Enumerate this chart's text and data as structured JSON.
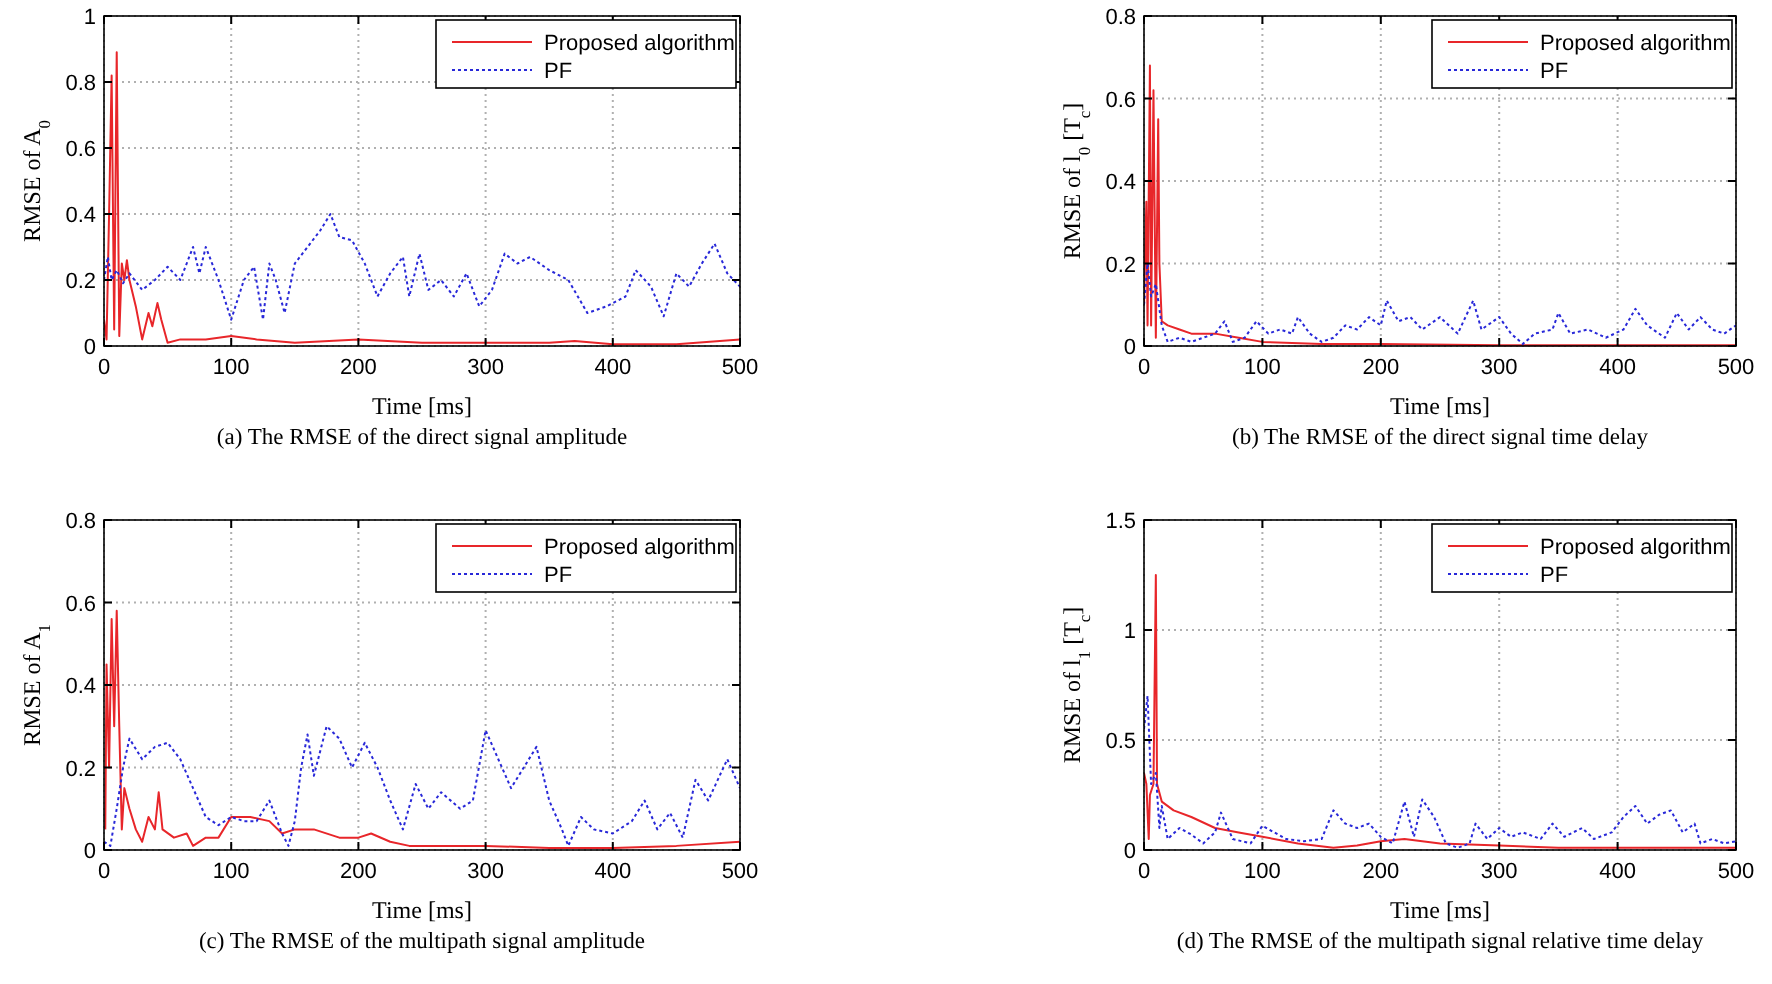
{
  "chart_data": [
    {
      "type": "line",
      "title": "(a) The RMSE of the direct signal amplitude",
      "xlabel": "Time [ms]",
      "ylabel": "RMSE of A$_{0}$",
      "xlim": [
        0,
        500
      ],
      "xticks": [
        0,
        100,
        200,
        300,
        400,
        500
      ],
      "ylim": [
        0,
        1
      ],
      "yticks": [
        0,
        0.2,
        0.4,
        0.6,
        0.8,
        1
      ],
      "grid": true,
      "legend": "top right",
      "series": [
        {
          "name": "Proposed algorithm",
          "color": "#e8262a",
          "line_style": "solid",
          "x": [
            0,
            2,
            4,
            6,
            8,
            10,
            12,
            14,
            16,
            18,
            20,
            25,
            30,
            35,
            38,
            42,
            45,
            50,
            60,
            80,
            100,
            120,
            150,
            200,
            250,
            300,
            350,
            370,
            400,
            450,
            500
          ],
          "values": [
            0.08,
            0.02,
            0.4,
            0.82,
            0.05,
            0.89,
            0.03,
            0.25,
            0.2,
            0.26,
            0.2,
            0.12,
            0.02,
            0.1,
            0.06,
            0.13,
            0.08,
            0.01,
            0.02,
            0.02,
            0.03,
            0.02,
            0.01,
            0.02,
            0.01,
            0.01,
            0.01,
            0.015,
            0.005,
            0.005,
            0.02
          ]
        },
        {
          "name": "PF",
          "color": "#2828d8",
          "line_style": "dotted",
          "x": [
            0,
            3,
            6,
            10,
            15,
            20,
            30,
            40,
            50,
            60,
            70,
            75,
            80,
            90,
            100,
            110,
            118,
            125,
            130,
            135,
            142,
            150,
            160,
            170,
            178,
            185,
            195,
            205,
            215,
            225,
            235,
            240,
            248,
            255,
            265,
            275,
            285,
            295,
            305,
            315,
            325,
            335,
            350,
            365,
            380,
            395,
            410,
            418,
            430,
            440,
            450,
            460,
            470,
            480,
            490,
            500
          ],
          "values": [
            0.2,
            0.27,
            0.2,
            0.23,
            0.19,
            0.22,
            0.17,
            0.2,
            0.24,
            0.2,
            0.3,
            0.22,
            0.3,
            0.2,
            0.08,
            0.2,
            0.24,
            0.08,
            0.25,
            0.2,
            0.1,
            0.25,
            0.3,
            0.35,
            0.4,
            0.33,
            0.32,
            0.25,
            0.15,
            0.22,
            0.27,
            0.15,
            0.28,
            0.17,
            0.2,
            0.15,
            0.22,
            0.12,
            0.17,
            0.28,
            0.25,
            0.27,
            0.23,
            0.2,
            0.1,
            0.12,
            0.15,
            0.23,
            0.18,
            0.09,
            0.22,
            0.18,
            0.25,
            0.31,
            0.22,
            0.18
          ]
        }
      ]
    },
    {
      "type": "line",
      "title": "(b) The RMSE of the direct signal time delay",
      "xlabel": "Time [ms]",
      "ylabel": "RMSE of l$_{0}$ [T$_{c}$]",
      "xlim": [
        0,
        500
      ],
      "xticks": [
        0,
        100,
        200,
        300,
        400,
        500
      ],
      "ylim": [
        0,
        0.8
      ],
      "yticks": [
        0,
        0.2,
        0.4,
        0.6,
        0.8
      ],
      "grid": true,
      "legend": "top right",
      "series": [
        {
          "name": "Proposed algorithm",
          "color": "#e8262a",
          "line_style": "solid",
          "x": [
            0,
            2,
            3,
            5,
            6,
            8,
            10,
            12,
            13,
            15,
            20,
            30,
            40,
            60,
            80,
            100,
            150,
            200,
            300,
            500
          ],
          "values": [
            0.1,
            0.35,
            0.05,
            0.68,
            0.05,
            0.62,
            0.02,
            0.55,
            0.2,
            0.06,
            0.05,
            0.04,
            0.03,
            0.03,
            0.02,
            0.01,
            0.005,
            0.005,
            0.002,
            0.002
          ]
        },
        {
          "name": "PF",
          "color": "#2828d8",
          "line_style": "dotted",
          "x": [
            0,
            3,
            6,
            10,
            15,
            20,
            30,
            40,
            50,
            60,
            68,
            75,
            85,
            95,
            105,
            115,
            125,
            130,
            140,
            150,
            160,
            170,
            180,
            190,
            200,
            205,
            215,
            225,
            235,
            250,
            265,
            278,
            285,
            300,
            310,
            320,
            330,
            345,
            350,
            360,
            375,
            390,
            405,
            415,
            425,
            440,
            450,
            460,
            470,
            480,
            490,
            500
          ],
          "values": [
            0.1,
            0.2,
            0.12,
            0.15,
            0.05,
            0.01,
            0.02,
            0.01,
            0.02,
            0.03,
            0.06,
            0.01,
            0.02,
            0.06,
            0.03,
            0.04,
            0.03,
            0.07,
            0.03,
            0.01,
            0.02,
            0.05,
            0.04,
            0.07,
            0.05,
            0.11,
            0.06,
            0.07,
            0.04,
            0.07,
            0.03,
            0.11,
            0.04,
            0.07,
            0.03,
            0.005,
            0.03,
            0.04,
            0.08,
            0.03,
            0.04,
            0.02,
            0.04,
            0.09,
            0.05,
            0.02,
            0.08,
            0.04,
            0.07,
            0.04,
            0.03,
            0.05
          ]
        }
      ]
    },
    {
      "type": "line",
      "title": "(c) The RMSE of the multipath signal amplitude",
      "xlabel": "Time [ms]",
      "ylabel": "RMSE of A$_{1}$",
      "xlim": [
        0,
        500
      ],
      "xticks": [
        0,
        100,
        200,
        300,
        400,
        500
      ],
      "ylim": [
        0,
        0.8
      ],
      "yticks": [
        0,
        0.2,
        0.4,
        0.6,
        0.8
      ],
      "grid": true,
      "legend": "top right",
      "series": [
        {
          "name": "Proposed algorithm",
          "color": "#e8262a",
          "line_style": "solid",
          "x": [
            1,
            2,
            4,
            6,
            8,
            10,
            12,
            14,
            16,
            20,
            25,
            30,
            35,
            40,
            43,
            46,
            55,
            65,
            70,
            80,
            90,
            100,
            115,
            130,
            140,
            150,
            165,
            185,
            200,
            210,
            225,
            240,
            260,
            300,
            350,
            400,
            450,
            500
          ],
          "values": [
            0.05,
            0.45,
            0.2,
            0.56,
            0.3,
            0.58,
            0.3,
            0.05,
            0.15,
            0.1,
            0.05,
            0.02,
            0.08,
            0.05,
            0.14,
            0.05,
            0.03,
            0.04,
            0.01,
            0.03,
            0.03,
            0.08,
            0.08,
            0.07,
            0.04,
            0.05,
            0.05,
            0.03,
            0.03,
            0.04,
            0.02,
            0.01,
            0.01,
            0.01,
            0.005,
            0.005,
            0.01,
            0.02
          ]
        },
        {
          "name": "PF",
          "color": "#2828d8",
          "line_style": "dotted",
          "x": [
            0,
            5,
            10,
            15,
            20,
            30,
            40,
            50,
            60,
            70,
            80,
            90,
            100,
            110,
            120,
            130,
            140,
            145,
            150,
            155,
            160,
            165,
            175,
            185,
            195,
            205,
            215,
            225,
            235,
            245,
            255,
            265,
            280,
            290,
            300,
            310,
            320,
            340,
            350,
            360,
            365,
            375,
            385,
            400,
            415,
            425,
            435,
            445,
            455,
            465,
            475,
            490,
            500
          ],
          "values": [
            0.02,
            0.01,
            0.1,
            0.2,
            0.27,
            0.22,
            0.25,
            0.26,
            0.22,
            0.15,
            0.08,
            0.06,
            0.08,
            0.07,
            0.07,
            0.12,
            0.04,
            0.01,
            0.07,
            0.2,
            0.28,
            0.18,
            0.3,
            0.27,
            0.2,
            0.26,
            0.2,
            0.12,
            0.05,
            0.16,
            0.1,
            0.14,
            0.1,
            0.12,
            0.29,
            0.22,
            0.15,
            0.25,
            0.12,
            0.05,
            0.01,
            0.08,
            0.05,
            0.04,
            0.07,
            0.12,
            0.05,
            0.09,
            0.03,
            0.17,
            0.12,
            0.22,
            0.15
          ]
        }
      ]
    },
    {
      "type": "line",
      "title": "(d) The RMSE of the multipath signal relative time delay",
      "xlabel": "Time [ms]",
      "ylabel": "RMSE of l$_{1}$ [T$_{c}$]",
      "xlim": [
        0,
        500
      ],
      "xticks": [
        0,
        100,
        200,
        300,
        400,
        500
      ],
      "ylim": [
        0,
        1.5
      ],
      "yticks": [
        0,
        0.5,
        1,
        1.5
      ],
      "grid": true,
      "legend": "top right",
      "series": [
        {
          "name": "Proposed algorithm",
          "color": "#e8262a",
          "line_style": "solid",
          "x": [
            0,
            2,
            4,
            5,
            8,
            10,
            11,
            15,
            25,
            40,
            60,
            80,
            100,
            130,
            160,
            180,
            200,
            220,
            250,
            300,
            350,
            400,
            450,
            500
          ],
          "values": [
            0.35,
            0.3,
            0.05,
            0.25,
            0.3,
            1.25,
            0.3,
            0.22,
            0.18,
            0.15,
            0.1,
            0.08,
            0.06,
            0.03,
            0.01,
            0.02,
            0.04,
            0.05,
            0.03,
            0.02,
            0.01,
            0.01,
            0.01,
            0.01
          ]
        },
        {
          "name": "PF",
          "color": "#2828d8",
          "line_style": "dotted",
          "x": [
            0,
            3,
            6,
            10,
            13,
            15,
            20,
            30,
            40,
            50,
            60,
            65,
            75,
            90,
            100,
            110,
            120,
            135,
            150,
            160,
            170,
            180,
            190,
            200,
            210,
            220,
            228,
            235,
            245,
            255,
            265,
            275,
            280,
            290,
            300,
            310,
            320,
            335,
            345,
            355,
            370,
            380,
            395,
            405,
            415,
            425,
            435,
            445,
            455,
            465,
            470,
            480,
            490,
            500
          ],
          "values": [
            0.55,
            0.7,
            0.3,
            0.35,
            0.1,
            0.2,
            0.05,
            0.1,
            0.07,
            0.03,
            0.08,
            0.17,
            0.05,
            0.03,
            0.11,
            0.08,
            0.05,
            0.04,
            0.05,
            0.18,
            0.12,
            0.1,
            0.12,
            0.06,
            0.03,
            0.22,
            0.06,
            0.23,
            0.15,
            0.03,
            0.01,
            0.03,
            0.12,
            0.05,
            0.1,
            0.06,
            0.08,
            0.05,
            0.12,
            0.06,
            0.1,
            0.05,
            0.08,
            0.15,
            0.2,
            0.12,
            0.16,
            0.18,
            0.08,
            0.12,
            0.03,
            0.05,
            0.03,
            0.04
          ]
        }
      ]
    }
  ]
}
